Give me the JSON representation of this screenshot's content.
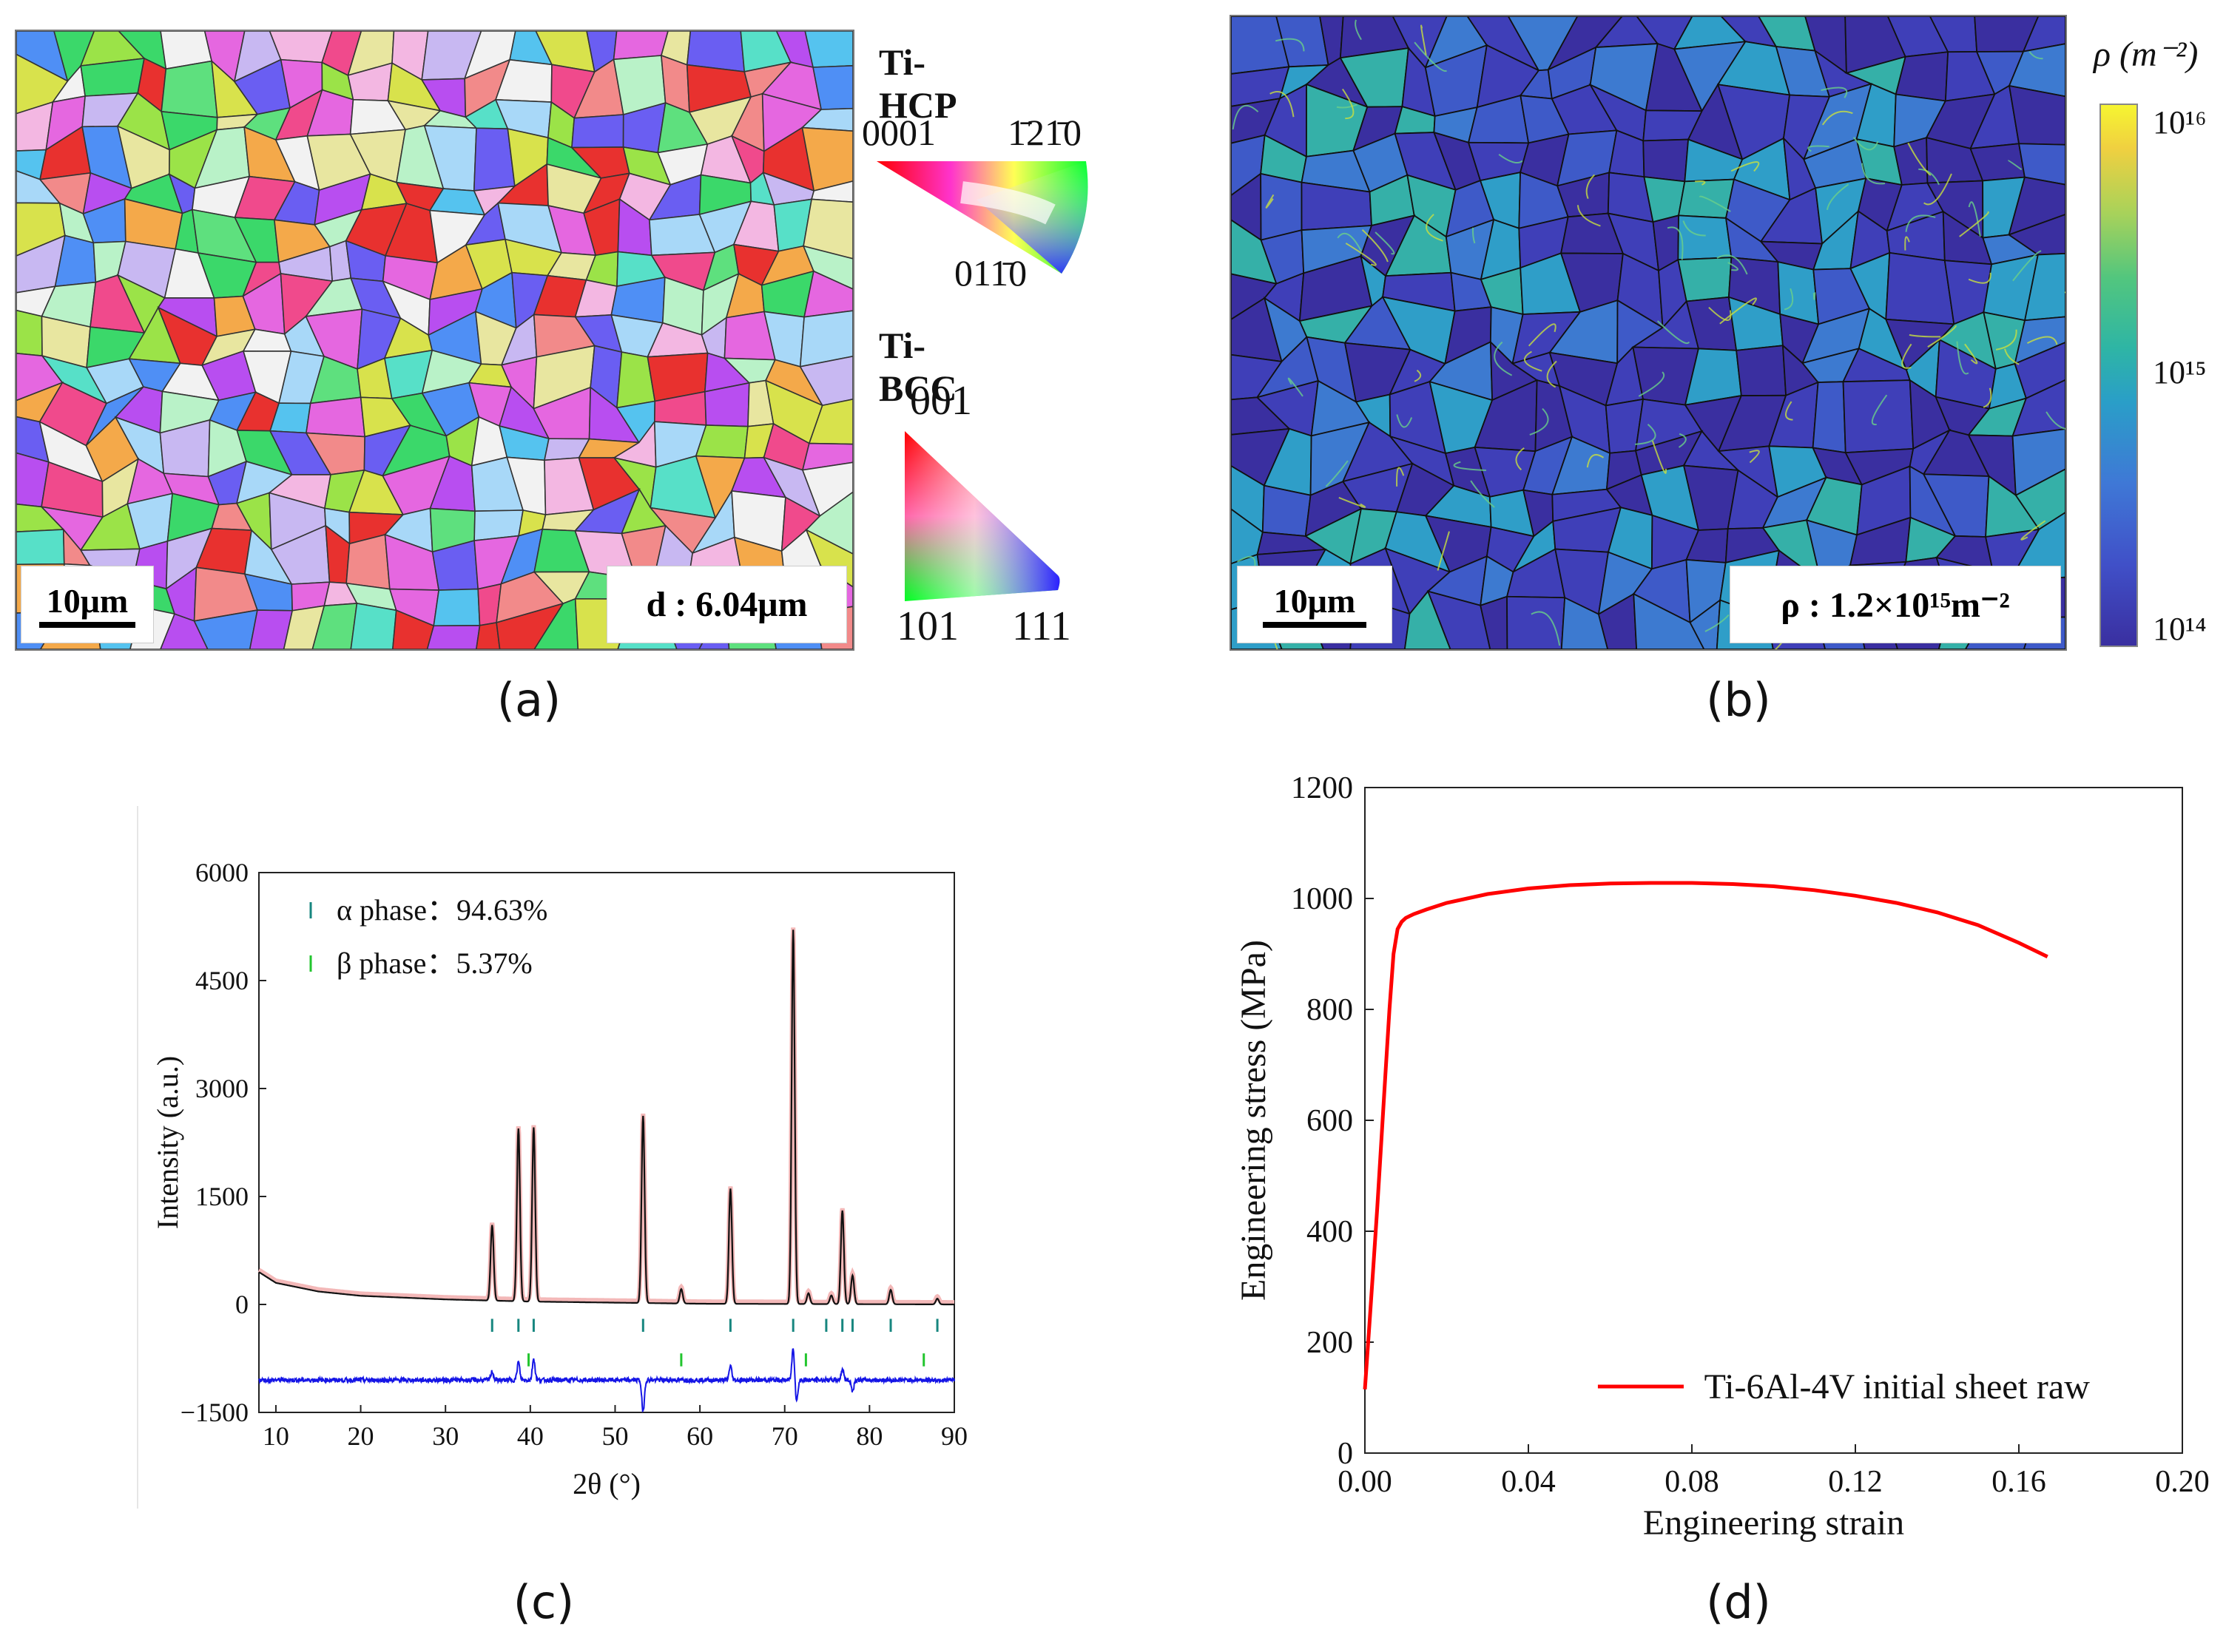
{
  "panels": {
    "a": {
      "caption": "(a)",
      "scale_bar": "10μm",
      "grain_size": "d : 6.04μm",
      "legend": {
        "hcp_title": "Ti-HCP",
        "hcp_0001": "0001",
        "hcp_12bar10": "1̄21̄0",
        "hcp_011bar0": "011̄0",
        "bcc_title": "Ti-BCC",
        "bcc_001": "001",
        "bcc_101": "101",
        "bcc_111": "111"
      }
    },
    "b": {
      "caption": "(b)",
      "scale_bar": "10μm",
      "density": "ρ : 1.2×10¹⁵m⁻²",
      "colorbar_title": "ρ (m⁻²)",
      "colorbar_ticks": [
        "10¹⁶",
        "10¹⁵",
        "10¹⁴"
      ]
    },
    "c": {
      "caption": "(c)",
      "legend": [
        "α phase：94.63%",
        "β phase：5.37%"
      ]
    },
    "d": {
      "caption": "(d)",
      "legend": "Ti-6Al-4V initial sheet raw"
    }
  },
  "colors": {
    "grain_colors": [
      "#e8312f",
      "#f04a8c",
      "#e567e0",
      "#b84ef0",
      "#6a5ef2",
      "#4f8ff5",
      "#55c3ef",
      "#57e0c8",
      "#5ee07e",
      "#9be348",
      "#d8e24c",
      "#f4a94a",
      "#f28a8a",
      "#f3b7e2",
      "#c8b8f2",
      "#a8d8f8",
      "#b9f2c8",
      "#e8e6a0",
      "#f2f2f2",
      "#3bd86a"
    ],
    "xrd_observed": "#f3b8b8",
    "xrd_calc": "#111111",
    "xrd_diff": "#1515e6",
    "alpha_tick": "#17867f",
    "beta_tick": "#22c52e",
    "stress_strain": "#ff0000",
    "rho_low": "#3a2fa0",
    "rho_mid": "#2aa8b8",
    "rho_high": "#f6f531"
  },
  "chart_data": [
    {
      "id": "xrd",
      "type": "line",
      "title": "",
      "xlabel": "2θ (°)",
      "ylabel": "Intensity (a.u.)",
      "xlim": [
        8,
        90
      ],
      "ylim": [
        -1500,
        6000
      ],
      "xticks": [
        10,
        20,
        30,
        40,
        50,
        60,
        70,
        80,
        90
      ],
      "yticks": [
        -1500,
        0,
        1500,
        3000,
        4500,
        6000
      ],
      "background": [
        [
          8,
          450
        ],
        [
          10,
          300
        ],
        [
          15,
          180
        ],
        [
          20,
          120
        ],
        [
          30,
          70
        ],
        [
          40,
          40
        ],
        [
          60,
          10
        ],
        [
          90,
          0
        ]
      ],
      "peaks": [
        {
          "x": 35.5,
          "y": 1050
        },
        {
          "x": 38.6,
          "y": 2400
        },
        {
          "x": 40.4,
          "y": 2420
        },
        {
          "x": 53.3,
          "y": 2600
        },
        {
          "x": 57.8,
          "y": 200
        },
        {
          "x": 63.6,
          "y": 1600
        },
        {
          "x": 71.0,
          "y": 5200
        },
        {
          "x": 72.8,
          "y": 150
        },
        {
          "x": 75.5,
          "y": 120
        },
        {
          "x": 76.8,
          "y": 1300
        },
        {
          "x": 78.0,
          "y": 400
        },
        {
          "x": 82.5,
          "y": 200
        },
        {
          "x": 88.0,
          "y": 80
        }
      ],
      "difference_offset": -1050,
      "difference_spikes": [
        {
          "x": 35.5,
          "y": 120
        },
        {
          "x": 38.6,
          "y": 250
        },
        {
          "x": 40.4,
          "y": 300
        },
        {
          "x": 53.3,
          "y": -450
        },
        {
          "x": 63.6,
          "y": 200
        },
        {
          "x": 71.0,
          "y": 450
        },
        {
          "x": 71.4,
          "y": -300
        },
        {
          "x": 76.8,
          "y": 150
        },
        {
          "x": 78.0,
          "y": -150
        }
      ],
      "alpha_ticks": [
        35.5,
        38.6,
        40.4,
        53.3,
        63.6,
        71.0,
        74.9,
        76.8,
        78.0,
        82.5,
        88.0
      ],
      "beta_ticks": [
        39.8,
        57.8,
        72.5,
        86.4
      ],
      "series": [
        {
          "name": "α phase：94.63%"
        },
        {
          "name": "β phase：5.37%"
        }
      ]
    },
    {
      "id": "stress_strain",
      "type": "line",
      "title": "",
      "xlabel": "Engineering strain",
      "ylabel": "Engineering stress (MPa)",
      "xlim": [
        0,
        0.2
      ],
      "ylim": [
        0,
        1200
      ],
      "xticks": [
        "0.00",
        "0.04",
        "0.08",
        "0.12",
        "0.16",
        "0.20"
      ],
      "yticks": [
        "0",
        "200",
        "400",
        "600",
        "800",
        "1000",
        "1200"
      ],
      "series": [
        {
          "name": "Ti-6Al-4V initial sheet raw",
          "x": [
            0.0,
            0.001,
            0.002,
            0.003,
            0.004,
            0.005,
            0.006,
            0.007,
            0.008,
            0.009,
            0.01,
            0.012,
            0.015,
            0.02,
            0.03,
            0.04,
            0.05,
            0.06,
            0.07,
            0.08,
            0.09,
            0.1,
            0.11,
            0.12,
            0.13,
            0.14,
            0.15,
            0.16,
            0.167
          ],
          "y": [
            115,
            220,
            330,
            440,
            560,
            680,
            800,
            900,
            945,
            958,
            965,
            972,
            980,
            992,
            1008,
            1018,
            1024,
            1027,
            1028,
            1028,
            1026,
            1022,
            1015,
            1005,
            992,
            975,
            952,
            920,
            895
          ]
        }
      ]
    }
  ]
}
